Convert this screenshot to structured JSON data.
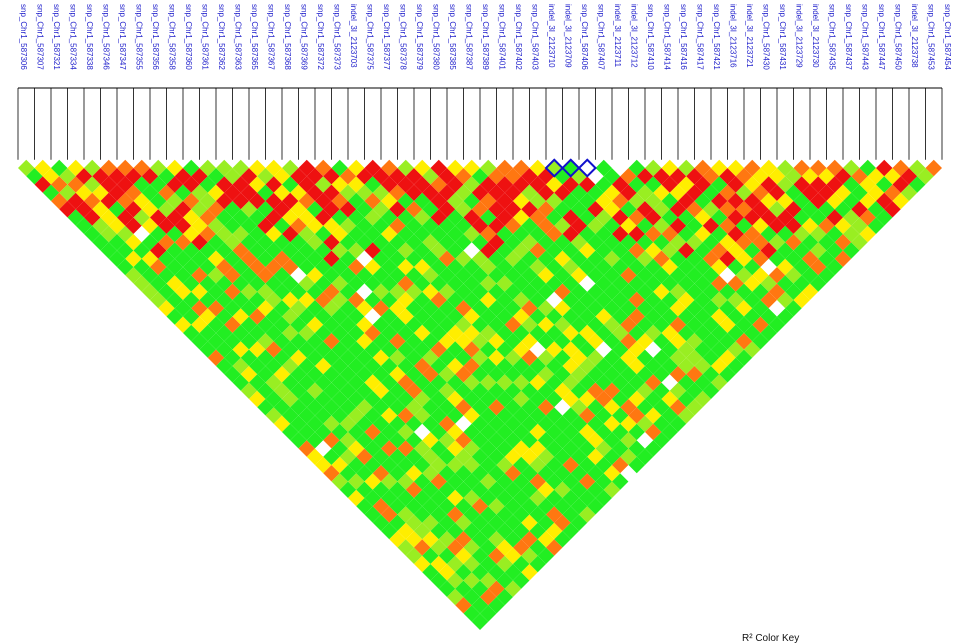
{
  "markers": [
    "snp_Chr1_587306",
    "snp_Chr1_587307",
    "snp_Chr1_587321",
    "snp_Chr1_587334",
    "snp_Chr1_587338",
    "snp_Chr1_587346",
    "snp_Chr1_587347",
    "snp_Chr1_587355",
    "snp_Chr1_587356",
    "snp_Chr1_587358",
    "snp_Chr1_587360",
    "snp_Chr1_587361",
    "snp_Chr1_587362",
    "snp_Chr1_587363",
    "snp_Chr1_587365",
    "snp_Chr1_587367",
    "snp_Chr1_587368",
    "snp_Chr1_587369",
    "snp_Chr1_587372",
    "snp_Chr1_587373",
    "indel_3I_2123703",
    "snp_Chr1_587375",
    "snp_Chr1_587377",
    "snp_Chr1_587378",
    "snp_Chr1_587379",
    "snp_Chr1_587380",
    "snp_Chr1_587385",
    "snp_Chr1_587387",
    "snp_Chr1_587389",
    "snp_Chr1_587401",
    "snp_Chr1_587402",
    "snp_Chr1_587403",
    "indel_3I_2123710",
    "indel_3I_2123709",
    "snp_Chr1_587406",
    "snp_Chr1_587407",
    "indel_3I_2123711",
    "indel_3I_2123712",
    "snp_Chr1_587410",
    "snp_Chr1_587414",
    "snp_Chr1_587416",
    "snp_Chr1_587417",
    "snp_Chr1_587421",
    "indel_3I_2123716",
    "indel_3I_2123721",
    "snp_Chr1_587430",
    "snp_Chr1_587431",
    "indel_3I_2123729",
    "indel_3I_2123730",
    "snp_Chr1_587435",
    "snp_Chr1_587437",
    "snp_Chr1_587443",
    "snp_Chr1_587447",
    "snp_Chr1_587450",
    "indel_3I_2123738",
    "snp_Chr1_587453",
    "snp_Chr1_587454"
  ],
  "legend": {
    "text": "R² Color Key"
  },
  "highlight": {
    "marker_a": 33,
    "marker_b": 34
  },
  "colors": {
    "high_ld": "#ee1111",
    "mid_high_ld": "#ff7711",
    "mid_ld": "#ffee00",
    "low_mid_ld": "#99ee22",
    "low_ld": "#22ee22",
    "no_data": "#ffffff",
    "highlight_outline": "#1111cc",
    "label_color": "#2222cc"
  }
}
